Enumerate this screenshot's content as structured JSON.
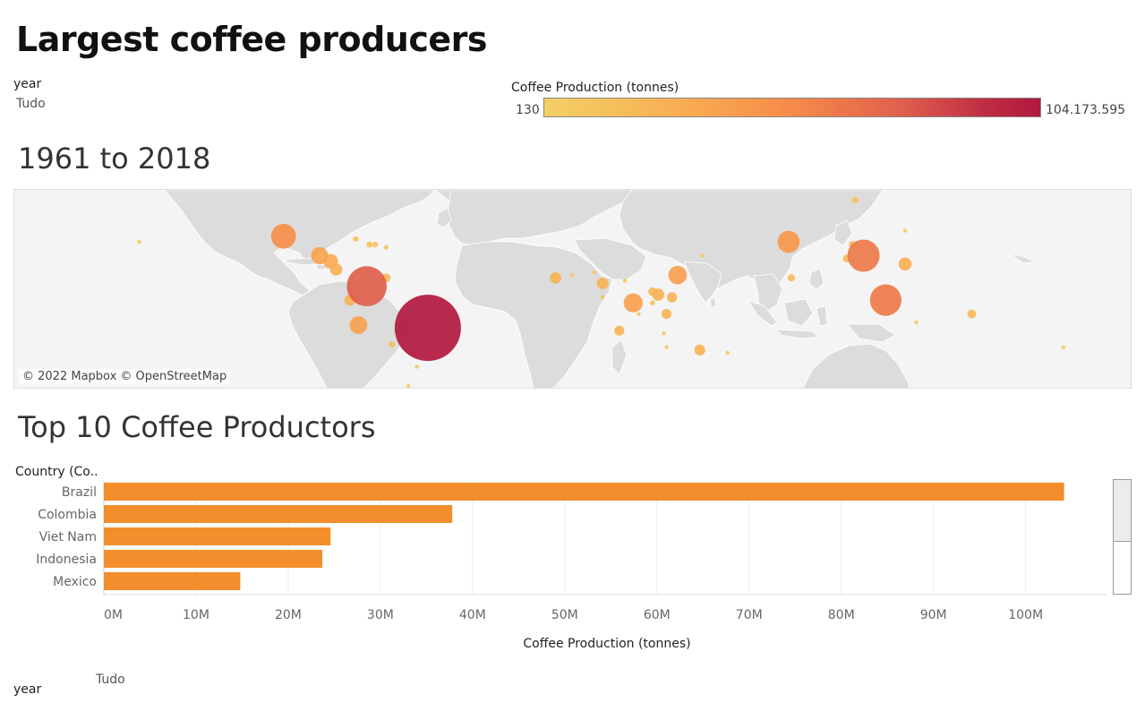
{
  "header": {
    "title": "Largest coffee producers"
  },
  "filter": {
    "label": "year",
    "value": "Tudo"
  },
  "legend": {
    "title": "Coffee Production (tonnes)",
    "min_label": "130",
    "max_label": "104.173.595",
    "colors": [
      "#f2d065",
      "#f8ad52",
      "#f68b49",
      "#e05f4c",
      "#c02f44",
      "#b1183f"
    ]
  },
  "map": {
    "title": "1961 to 2018",
    "attribution": "© 2022 Mapbox © OpenStreetMap",
    "land_color": "#dcdcdc",
    "ocean_color": "#f4f4f4"
  },
  "bar_panel": {
    "title": "Top 10 Coffee Productors"
  },
  "footer": {
    "label": "year",
    "value": "Tudo"
  },
  "chart_data": [
    {
      "type": "scatter",
      "description_kind": "symbol map",
      "size_and_color_measure": "Coffee Production (tonnes)",
      "points": [
        {
          "lon": -51,
          "lat": -11,
          "value": 104173595
        },
        {
          "lon": -73,
          "lat": 4,
          "value": 37800000
        },
        {
          "lon": 106,
          "lat": 15,
          "value": 24600000
        },
        {
          "lon": 114,
          "lat": -1,
          "value": 23700000
        },
        {
          "lon": -103,
          "lat": 22,
          "value": 14800000
        },
        {
          "lon": 79,
          "lat": 20,
          "value": 11500000
        },
        {
          "lon": 39,
          "lat": 8,
          "value": 8000000
        },
        {
          "lon": 23,
          "lat": -2,
          "value": 8500000
        },
        {
          "lon": -76,
          "lat": -10,
          "value": 7500000
        },
        {
          "lon": -90,
          "lat": 15,
          "value": 7000000
        },
        {
          "lon": -86,
          "lat": 13,
          "value": 5000000
        },
        {
          "lon": 121,
          "lat": 12,
          "value": 4000000
        },
        {
          "lon": -84,
          "lat": 10,
          "value": 3500000
        },
        {
          "lon": 47,
          "lat": -19,
          "value": 2800000
        },
        {
          "lon": 32,
          "lat": 1,
          "value": 3500000
        },
        {
          "lon": 12,
          "lat": 5,
          "value": 3200000
        },
        {
          "lon": -5,
          "lat": 7,
          "value": 3000000
        },
        {
          "lon": 37,
          "lat": 0,
          "value": 2500000
        },
        {
          "lon": 35,
          "lat": -6,
          "value": 2400000
        },
        {
          "lon": 30,
          "lat": 2,
          "value": 1800000
        },
        {
          "lon": -66,
          "lat": 7,
          "value": 1800000
        },
        {
          "lon": -64,
          "lat": -17,
          "value": 1000000
        },
        {
          "lon": 18,
          "lat": -12,
          "value": 2400000
        },
        {
          "lon": -79,
          "lat": -1,
          "value": 3000000
        },
        {
          "lon": 145,
          "lat": -6,
          "value": 1800000
        },
        {
          "lon": 102,
          "lat": 19,
          "value": 1200000
        },
        {
          "lon": 100,
          "lat": 14,
          "value": 1500000
        },
        {
          "lon": 80,
          "lat": 7,
          "value": 1200000
        },
        {
          "lon": 103,
          "lat": 35,
          "value": 1000000
        },
        {
          "lon": -72,
          "lat": 19,
          "value": 900000
        },
        {
          "lon": -70,
          "lat": 19,
          "value": 800000
        },
        {
          "lon": -77,
          "lat": 21,
          "value": 700000
        },
        {
          "lon": -66,
          "lat": 18,
          "value": 500000
        },
        {
          "lon": 1,
          "lat": 8,
          "value": 400000
        },
        {
          "lon": 9,
          "lat": 9,
          "value": 300000
        },
        {
          "lon": 30,
          "lat": -2,
          "value": 600000
        },
        {
          "lon": 34,
          "lat": -13,
          "value": 300000
        },
        {
          "lon": 35,
          "lat": -18,
          "value": 300000
        },
        {
          "lon": 20,
          "lat": 6,
          "value": 400000
        },
        {
          "lon": 12,
          "lat": 0,
          "value": 300000
        },
        {
          "lon": 48,
          "lat": 15,
          "value": 200000
        },
        {
          "lon": 25,
          "lat": -6,
          "value": 300000
        },
        {
          "lon": 125,
          "lat": -9,
          "value": 300000
        },
        {
          "lon": 121,
          "lat": 24,
          "value": 150000
        },
        {
          "lon": -58,
          "lat": -32,
          "value": 100000
        },
        {
          "lon": -55,
          "lat": -25,
          "value": 200000
        },
        {
          "lon": 57,
          "lat": -20,
          "value": 100000
        },
        {
          "lon": 178,
          "lat": -18,
          "value": 100000
        },
        {
          "lon": -155,
          "lat": 20,
          "value": 100000
        }
      ]
    },
    {
      "type": "bar",
      "orientation": "horizontal",
      "row_header": "Country (Co..",
      "xlabel": "Coffee Production (tonnes)",
      "categories": [
        "Brazil",
        "Colombia",
        "Viet Nam",
        "Indonesia",
        "Mexico"
      ],
      "values": [
        104173595,
        37800000,
        24600000,
        23700000,
        14800000
      ],
      "xlim": [
        0,
        108000000
      ],
      "xticks": [
        0,
        10000000,
        20000000,
        30000000,
        40000000,
        50000000,
        60000000,
        70000000,
        80000000,
        90000000,
        100000000
      ],
      "xtick_labels": [
        "0M",
        "10M",
        "20M",
        "30M",
        "40M",
        "50M",
        "60M",
        "70M",
        "80M",
        "90M",
        "100M"
      ],
      "bar_color": "#f28e2b",
      "grid": true
    }
  ]
}
